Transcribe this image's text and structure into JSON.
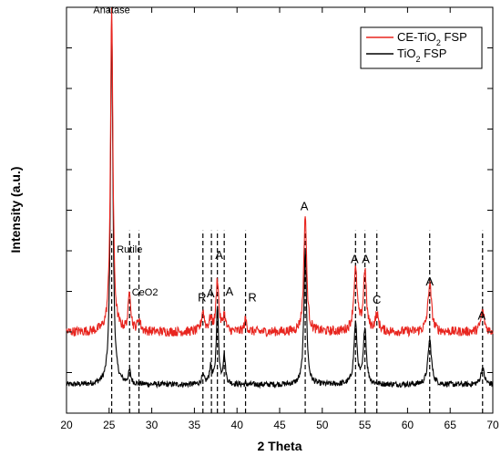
{
  "chart_data": {
    "type": "line",
    "xlabel": "2 Theta",
    "ylabel": "Intensity (a.u.)",
    "xlim": [
      20,
      70
    ],
    "xticks": [
      20,
      25,
      30,
      35,
      40,
      45,
      50,
      55,
      60,
      65,
      70
    ],
    "ytick_count": 11,
    "legend_position": "top-right",
    "series": [
      {
        "name": "CE-TiO2 FSP",
        "color": "#e8251f",
        "baseline": 0.2,
        "noise": 0.012
      },
      {
        "name": "TiO2 FSP",
        "color": "#000000",
        "baseline": 0.07,
        "noise": 0.007
      }
    ],
    "legend": [
      {
        "prefix": "CE-TiO",
        "sub": "2",
        "suffix": " FSP",
        "color": "#e8251f"
      },
      {
        "prefix": "TiO",
        "sub": "2",
        "suffix": " FSP",
        "color": "#000000"
      }
    ],
    "peaks": {
      "CE-TiO2 FSP": [
        {
          "x": 25.3,
          "h": 0.8,
          "w": 0.17
        },
        {
          "x": 27.4,
          "h": 0.1,
          "w": 0.17
        },
        {
          "x": 28.5,
          "h": 0.03,
          "w": 0.2
        },
        {
          "x": 36.0,
          "h": 0.05,
          "w": 0.2
        },
        {
          "x": 36.9,
          "h": 0.03,
          "w": 0.2
        },
        {
          "x": 37.7,
          "h": 0.13,
          "w": 0.18
        },
        {
          "x": 38.5,
          "h": 0.04,
          "w": 0.18
        },
        {
          "x": 41.0,
          "h": 0.03,
          "w": 0.18
        },
        {
          "x": 48.0,
          "h": 0.29,
          "w": 0.2
        },
        {
          "x": 53.9,
          "h": 0.15,
          "w": 0.25
        },
        {
          "x": 55.0,
          "h": 0.15,
          "w": 0.2
        },
        {
          "x": 56.4,
          "h": 0.04,
          "w": 0.25
        },
        {
          "x": 62.6,
          "h": 0.12,
          "w": 0.25
        },
        {
          "x": 68.8,
          "h": 0.05,
          "w": 0.25
        }
      ],
      "TiO2 FSP": [
        {
          "x": 25.3,
          "h": 0.89,
          "w": 0.17
        },
        {
          "x": 27.4,
          "h": 0.03,
          "w": 0.17
        },
        {
          "x": 36.0,
          "h": 0.02,
          "w": 0.2
        },
        {
          "x": 36.9,
          "h": 0.04,
          "w": 0.18
        },
        {
          "x": 37.7,
          "h": 0.19,
          "w": 0.16
        },
        {
          "x": 38.5,
          "h": 0.07,
          "w": 0.16
        },
        {
          "x": 48.0,
          "h": 0.34,
          "w": 0.18
        },
        {
          "x": 53.9,
          "h": 0.15,
          "w": 0.22
        },
        {
          "x": 55.0,
          "h": 0.14,
          "w": 0.2
        },
        {
          "x": 62.6,
          "h": 0.11,
          "w": 0.25
        },
        {
          "x": 68.8,
          "h": 0.04,
          "w": 0.25
        }
      ]
    },
    "reference_lines": [
      25.3,
      27.4,
      28.5,
      36.0,
      37.0,
      37.7,
      38.5,
      41.0,
      48.0,
      53.9,
      55.0,
      56.4,
      62.6,
      68.8
    ],
    "annotations": [
      {
        "text": "Anatase",
        "x": 25.3,
        "y": 0.985,
        "size": 11
      },
      {
        "text": "Rutile",
        "x": 27.4,
        "y": 0.395,
        "size": 11
      },
      {
        "text": "CeO2",
        "x": 29.2,
        "y": 0.29,
        "size": 11
      },
      {
        "text": "R",
        "x": 35.9,
        "y": 0.275,
        "size": 13
      },
      {
        "text": "A",
        "x": 36.9,
        "y": 0.285,
        "size": 13
      },
      {
        "text": "A",
        "x": 37.9,
        "y": 0.38,
        "size": 13
      },
      {
        "text": "A",
        "x": 39.1,
        "y": 0.29,
        "size": 13
      },
      {
        "text": "R",
        "x": 41.8,
        "y": 0.275,
        "size": 13
      },
      {
        "text": "A",
        "x": 47.9,
        "y": 0.5,
        "size": 13
      },
      {
        "text": "A",
        "x": 53.8,
        "y": 0.37,
        "size": 13
      },
      {
        "text": "A",
        "x": 55.1,
        "y": 0.37,
        "size": 13
      },
      {
        "text": "C",
        "x": 56.4,
        "y": 0.27,
        "size": 13
      },
      {
        "text": "A",
        "x": 62.6,
        "y": 0.315,
        "size": 13
      },
      {
        "text": "A",
        "x": 68.7,
        "y": 0.23,
        "size": 13
      }
    ]
  }
}
